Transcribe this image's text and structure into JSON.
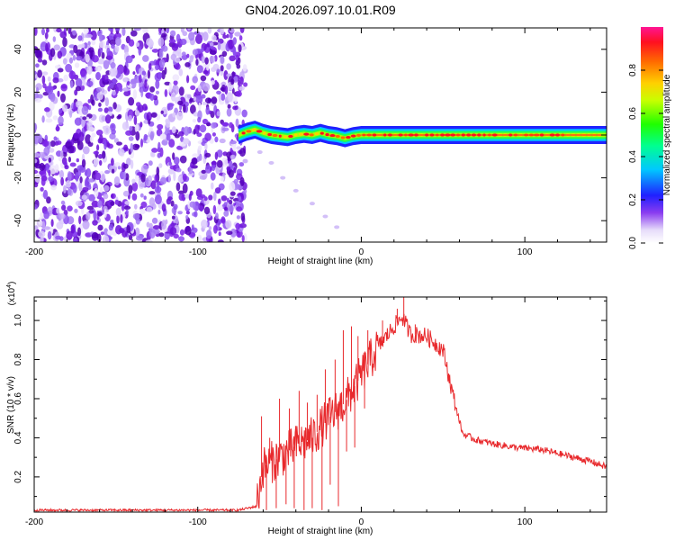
{
  "title": "GN04.2026.097.10.01.R09",
  "chart_data": [
    {
      "type": "heatmap",
      "xlabel": "Height of straight line (km)",
      "ylabel": "Frequency (Hz)",
      "xlim": [
        -200,
        150
      ],
      "ylim": [
        -50,
        50
      ],
      "xticks": [
        -200,
        -100,
        0,
        100
      ],
      "xtick_labels": [
        "-200",
        "-100",
        "0",
        "100"
      ],
      "yticks": [
        -40,
        -20,
        0,
        20,
        40
      ],
      "ytick_labels": [
        "-40",
        "-20",
        "0",
        "20",
        "40"
      ],
      "noise_region_x": [
        -200,
        -73
      ],
      "band": [
        {
          "x": -75,
          "f": 0.0
        },
        {
          "x": -70,
          "f": 1.5
        },
        {
          "x": -65,
          "f": 2.5
        },
        {
          "x": -60,
          "f": 1.0
        },
        {
          "x": -55,
          "f": 0.0
        },
        {
          "x": -50,
          "f": -0.5
        },
        {
          "x": -45,
          "f": -1.0
        },
        {
          "x": -40,
          "f": 0.0
        },
        {
          "x": -35,
          "f": 0.5
        },
        {
          "x": -30,
          "f": 0.0
        },
        {
          "x": -25,
          "f": 1.0
        },
        {
          "x": -20,
          "f": 0.0
        },
        {
          "x": -15,
          "f": -0.5
        },
        {
          "x": -10,
          "f": -1.5
        },
        {
          "x": -5,
          "f": -0.5
        },
        {
          "x": 0,
          "f": 0.0
        },
        {
          "x": 150,
          "f": 0.0
        }
      ],
      "tail": [
        {
          "x": -62,
          "f": -8
        },
        {
          "x": -55,
          "f": -13
        },
        {
          "x": -48,
          "f": -20
        },
        {
          "x": -40,
          "f": -26
        },
        {
          "x": -30,
          "f": -32
        },
        {
          "x": -22,
          "f": -38
        },
        {
          "x": -15,
          "f": -43
        }
      ],
      "colorbar": {
        "label": "Normalized spectral amplitude",
        "range": [
          0,
          1
        ],
        "ticks": [
          0.0,
          0.2,
          0.4,
          0.6,
          0.8
        ],
        "tick_labels": [
          "0.0",
          "0.2",
          "0.4",
          "0.6",
          "0.8"
        ]
      }
    },
    {
      "type": "line",
      "xlabel": "Height of straight line (km)",
      "ylabel": "SNR (10 * v/v)",
      "exponent_label": "(x10",
      "exponent_power": "4",
      "exponent_close": ")",
      "xlim": [
        -200,
        150
      ],
      "ylim": [
        0.02,
        1.12
      ],
      "xticks": [
        -200,
        -100,
        0,
        100
      ],
      "xtick_labels": [
        "-200",
        "-100",
        "0",
        "100"
      ],
      "yticks": [
        0.2,
        0.4,
        0.6,
        0.8,
        1.0
      ],
      "ytick_labels": [
        "0.2",
        "0.4",
        "0.6",
        "0.8",
        "1.0"
      ],
      "series": [
        {
          "name": "SNR",
          "color": "#e8292c",
          "envelope": [
            {
              "x": -200,
              "y": 0.03
            },
            {
              "x": -75,
              "y": 0.03
            },
            {
              "x": -64,
              "y": 0.05
            },
            {
              "x": -60,
              "y": 0.25
            },
            {
              "x": -50,
              "y": 0.3
            },
            {
              "x": -40,
              "y": 0.36
            },
            {
              "x": -30,
              "y": 0.4
            },
            {
              "x": -20,
              "y": 0.5
            },
            {
              "x": -10,
              "y": 0.58
            },
            {
              "x": 0,
              "y": 0.72
            },
            {
              "x": 10,
              "y": 0.86
            },
            {
              "x": 20,
              "y": 0.97
            },
            {
              "x": 25,
              "y": 1.02
            },
            {
              "x": 30,
              "y": 0.93
            },
            {
              "x": 40,
              "y": 0.92
            },
            {
              "x": 50,
              "y": 0.85
            },
            {
              "x": 56,
              "y": 0.62
            },
            {
              "x": 62,
              "y": 0.42
            },
            {
              "x": 70,
              "y": 0.39
            },
            {
              "x": 80,
              "y": 0.37
            },
            {
              "x": 95,
              "y": 0.35
            },
            {
              "x": 110,
              "y": 0.34
            },
            {
              "x": 125,
              "y": 0.31
            },
            {
              "x": 140,
              "y": 0.28
            },
            {
              "x": 150,
              "y": 0.25
            }
          ],
          "spikes": [
            {
              "x": -61,
              "y": 0.51
            },
            {
              "x": -56,
              "y": 0.4
            },
            {
              "x": -50,
              "y": 0.6
            },
            {
              "x": -44,
              "y": 0.55
            },
            {
              "x": -38,
              "y": 0.64
            },
            {
              "x": -33,
              "y": 0.58
            },
            {
              "x": -27,
              "y": 0.62
            },
            {
              "x": -22,
              "y": 0.75
            },
            {
              "x": -16,
              "y": 0.8
            },
            {
              "x": -11,
              "y": 0.95
            },
            {
              "x": -6,
              "y": 0.97
            },
            {
              "x": -2,
              "y": 0.92
            },
            {
              "x": 4,
              "y": 0.95
            },
            {
              "x": 13,
              "y": 1.0
            },
            {
              "x": 22,
              "y": 1.06
            },
            {
              "x": 26,
              "y": 1.12
            },
            {
              "x": 33,
              "y": 0.98
            }
          ],
          "dips": [
            {
              "x": -58,
              "y": 0.03
            },
            {
              "x": -52,
              "y": 0.04
            },
            {
              "x": -46,
              "y": 0.06
            },
            {
              "x": -41,
              "y": 0.04
            },
            {
              "x": -35,
              "y": 0.03
            },
            {
              "x": -30,
              "y": 0.04
            },
            {
              "x": -24,
              "y": 0.03
            },
            {
              "x": -19,
              "y": 0.16
            },
            {
              "x": -14,
              "y": 0.05
            },
            {
              "x": -9,
              "y": 0.33
            },
            {
              "x": -4,
              "y": 0.35
            },
            {
              "x": 2,
              "y": 0.55
            }
          ]
        }
      ]
    }
  ]
}
